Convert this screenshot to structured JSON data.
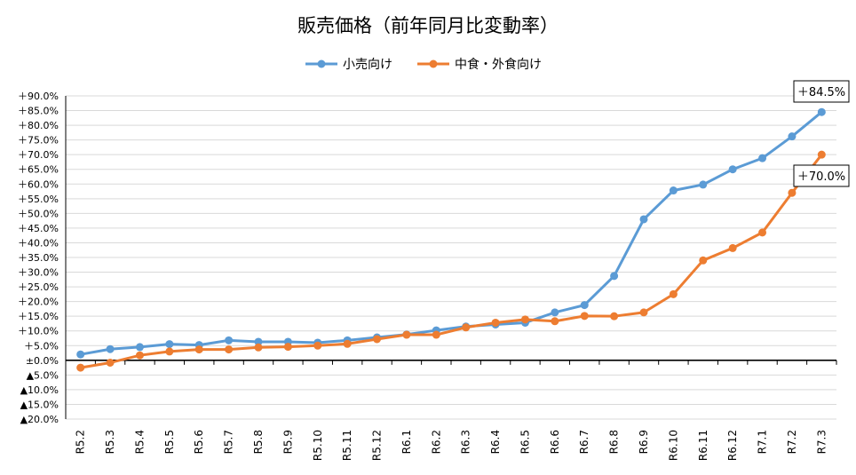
{
  "chart_data": {
    "type": "line",
    "title": "販売価格（前年同月比変動率）",
    "categories": [
      "R5.2",
      "R5.3",
      "R5.4",
      "R5.5",
      "R5.6",
      "R5.7",
      "R5.8",
      "R5.9",
      "R5.10",
      "R5.11",
      "R5.12",
      "R6.1",
      "R6.2",
      "R6.3",
      "R6.4",
      "R6.5",
      "R6.6",
      "R6.7",
      "R6.8",
      "R6.9",
      "R6.10",
      "R6.11",
      "R6.12",
      "R7.1",
      "R7.2",
      "R7.3"
    ],
    "series": [
      {
        "name": "小売向け",
        "color": "#5B9BD5",
        "values": [
          2.0,
          3.8,
          4.5,
          5.5,
          5.2,
          6.8,
          6.3,
          6.3,
          6.0,
          6.8,
          7.8,
          8.8,
          10.2,
          11.5,
          12.2,
          12.8,
          16.3,
          18.8,
          28.7,
          48.0,
          57.8,
          59.8,
          65.0,
          68.8,
          76.2,
          84.5
        ]
      },
      {
        "name": "中食・外食向け",
        "color": "#ED7D31",
        "values": [
          -2.5,
          -0.8,
          1.7,
          3.0,
          3.7,
          3.7,
          4.4,
          4.6,
          5.0,
          5.6,
          7.2,
          8.7,
          8.7,
          11.2,
          12.8,
          13.9,
          13.3,
          15.1,
          15.0,
          16.3,
          22.5,
          34.0,
          38.2,
          43.5,
          57.0,
          70.0
        ]
      }
    ],
    "ylim": [
      -20,
      90
    ],
    "y_ticks": [
      90,
      85,
      80,
      75,
      70,
      65,
      60,
      55,
      50,
      45,
      40,
      35,
      30,
      25,
      20,
      15,
      10,
      5,
      0,
      -5,
      -10,
      -15,
      -20
    ],
    "y_tick_labels": [
      "＋90.0%",
      "＋85.0%",
      "＋80.0%",
      "＋75.0%",
      "＋70.0%",
      "＋65.0%",
      "＋60.0%",
      "＋55.0%",
      "＋50.0%",
      "＋45.0%",
      "＋40.0%",
      "＋35.0%",
      "＋30.0%",
      "＋25.0%",
      "＋20.0%",
      "＋15.0%",
      "＋10.0%",
      "＋5.0%",
      "±0.0%",
      "▲5.0%",
      "▲10.0%",
      "▲15.0%",
      "▲20.0%"
    ],
    "annotations": [
      {
        "series": 0,
        "text": "＋84.5%"
      },
      {
        "series": 1,
        "text": "＋70.0%"
      }
    ],
    "grid": true,
    "legend_position": "top"
  }
}
